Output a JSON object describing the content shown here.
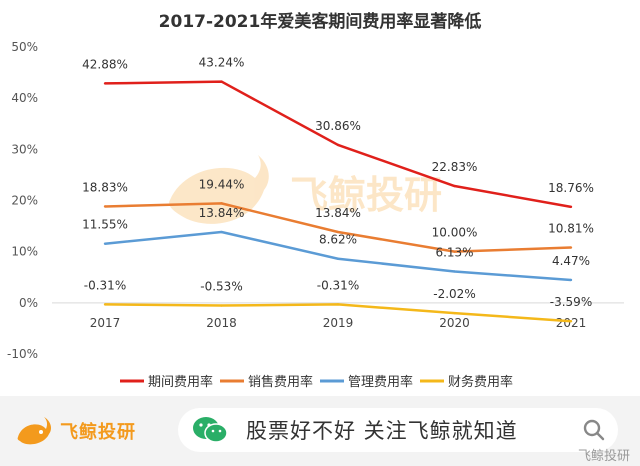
{
  "chart_data": {
    "type": "line",
    "title": "2017-2021年爱美客期间费用率显著降低",
    "x": [
      "2017",
      "2018",
      "2019",
      "2020",
      "2021"
    ],
    "ylim": [
      -10,
      50
    ],
    "yticks": [
      "-10%",
      "0%",
      "10%",
      "20%",
      "30%",
      "40%",
      "50%"
    ],
    "grid": false,
    "legend_position": "bottom",
    "series": [
      {
        "name": "期间费用率",
        "color": "#e0201b",
        "values": [
          42.88,
          43.24,
          30.86,
          22.83,
          18.76
        ],
        "labels": [
          "42.88%",
          "43.24%",
          "30.86%",
          "22.83%",
          "18.76%"
        ]
      },
      {
        "name": "销售费用率",
        "color": "#e97d32",
        "values": [
          18.83,
          19.44,
          13.84,
          10.0,
          10.81
        ],
        "labels": [
          "18.83%",
          "19.44%",
          "13.84%",
          "10.00%",
          "10.81%"
        ]
      },
      {
        "name": "管理费用率",
        "color": "#5b9bd5",
        "values": [
          11.55,
          13.84,
          8.62,
          6.13,
          4.47
        ],
        "labels": [
          "11.55%",
          "13.84%",
          "8.62%",
          "6.13%",
          "4.47%"
        ]
      },
      {
        "name": "财务费用率",
        "color": "#f4b81a",
        "values": [
          -0.31,
          -0.53,
          -0.31,
          -2.02,
          -3.59
        ],
        "labels": [
          "-0.31%",
          "-0.53%",
          "-0.31%",
          "-2.02%",
          "-3.59%"
        ]
      }
    ]
  },
  "watermark_brand": "飞鲸投研",
  "footer": {
    "brand": "飞鲸投研",
    "search_text": "股票好不好 关注飞鲸就知道",
    "watermark": "飞鲸投研"
  },
  "icons": {
    "logo": "whale-logo-icon",
    "wechat": "wechat-icon",
    "search": "search-icon"
  },
  "colors": {
    "brand": "#f39a1d",
    "wechat": "#2aae67"
  }
}
